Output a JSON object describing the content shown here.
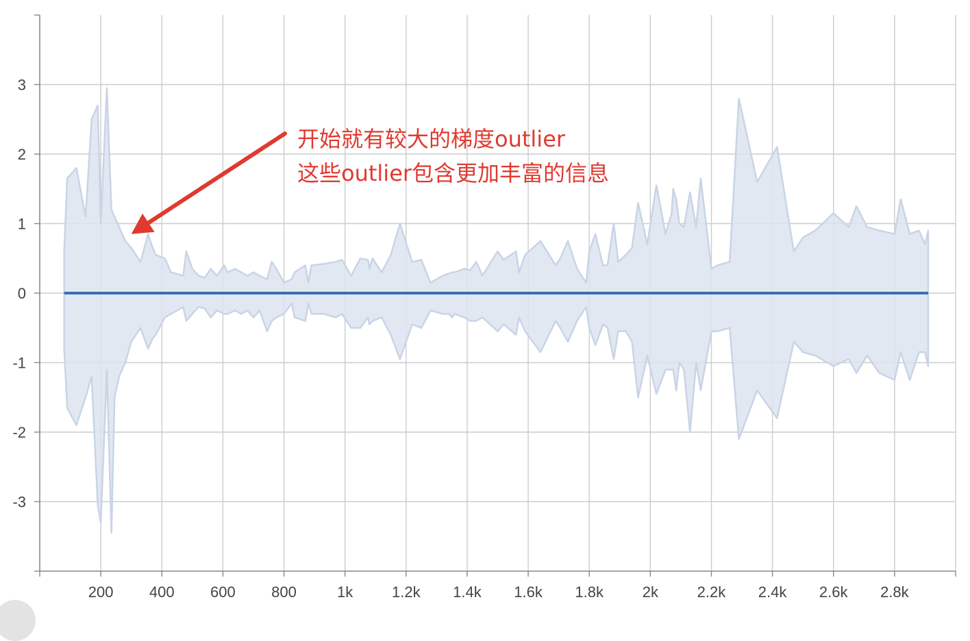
{
  "chart_data": {
    "type": "area",
    "title": "",
    "xlabel": "",
    "ylabel": "",
    "xlim": [
      0,
      3000
    ],
    "ylim": [
      -4,
      4
    ],
    "x_ticks": [
      {
        "value": 200,
        "label": "200"
      },
      {
        "value": 400,
        "label": "400"
      },
      {
        "value": 600,
        "label": "600"
      },
      {
        "value": 800,
        "label": "800"
      },
      {
        "value": 1000,
        "label": "1k"
      },
      {
        "value": 1200,
        "label": "1.2k"
      },
      {
        "value": 1400,
        "label": "1.4k"
      },
      {
        "value": 1600,
        "label": "1.6k"
      },
      {
        "value": 1800,
        "label": "1.8k"
      },
      {
        "value": 2000,
        "label": "2k"
      },
      {
        "value": 2200,
        "label": "2.2k"
      },
      {
        "value": 2400,
        "label": "2.4k"
      },
      {
        "value": 2600,
        "label": "2.6k"
      },
      {
        "value": 2800,
        "label": "2.8k"
      }
    ],
    "y_ticks": [
      {
        "value": 3,
        "label": "3"
      },
      {
        "value": 2,
        "label": "2"
      },
      {
        "value": 1,
        "label": "1"
      },
      {
        "value": 0,
        "label": "0"
      },
      {
        "value": -1,
        "label": "-1"
      },
      {
        "value": -2,
        "label": "-2"
      },
      {
        "value": -3,
        "label": "-3"
      }
    ],
    "grid": true,
    "colors": {
      "mean_line": "#3a6fb0",
      "band_fill": "#dde4ef",
      "band_stroke": "#c9d4e6",
      "grid": "#cccccc",
      "axis": "#888888",
      "annotation": "#e03a30"
    },
    "series": [
      {
        "kind": "line",
        "x": [
          80,
          2910
        ],
        "y": [
          0,
          0
        ]
      },
      {
        "kind": "band",
        "x": [
          80,
          90,
          120,
          150,
          170,
          190,
          200,
          220,
          235,
          245,
          260,
          280,
          300,
          330,
          355,
          370,
          380,
          410,
          430,
          470,
          480,
          500,
          520,
          540,
          560,
          580,
          605,
          615,
          640,
          660,
          680,
          700,
          720,
          745,
          760,
          775,
          800,
          825,
          835,
          870,
          880,
          890,
          930,
          970,
          990,
          1020,
          1050,
          1075,
          1080,
          1090,
          1120,
          1150,
          1180,
          1220,
          1250,
          1280,
          1320,
          1340,
          1350,
          1360,
          1390,
          1410,
          1430,
          1450,
          1500,
          1520,
          1560,
          1570,
          1590,
          1640,
          1690,
          1705,
          1730,
          1760,
          1790,
          1800,
          1820,
          1845,
          1860,
          1880,
          1895,
          1920,
          1940,
          1960,
          1990,
          2020,
          2050,
          2070,
          2075,
          2085,
          2095,
          2110,
          2130,
          2150,
          2165,
          2200,
          2220,
          2260,
          2290,
          2350,
          2415,
          2470,
          2500,
          2540,
          2600,
          2650,
          2675,
          2710,
          2750,
          2800,
          2820,
          2850,
          2880,
          2900,
          2910
        ],
        "upper": [
          0.6,
          1.65,
          1.8,
          1.1,
          2.5,
          2.7,
          1.0,
          2.95,
          1.2,
          1.1,
          0.95,
          0.75,
          0.65,
          0.45,
          0.85,
          0.65,
          0.55,
          0.5,
          0.3,
          0.25,
          0.6,
          0.35,
          0.25,
          0.22,
          0.35,
          0.25,
          0.4,
          0.3,
          0.35,
          0.3,
          0.25,
          0.3,
          0.25,
          0.2,
          0.45,
          0.35,
          0.15,
          0.2,
          0.3,
          0.4,
          0.15,
          0.4,
          0.42,
          0.45,
          0.48,
          0.25,
          0.5,
          0.48,
          0.35,
          0.5,
          0.3,
          0.55,
          1.0,
          0.45,
          0.48,
          0.15,
          0.25,
          0.28,
          0.3,
          0.3,
          0.35,
          0.33,
          0.45,
          0.25,
          0.6,
          0.48,
          0.6,
          0.3,
          0.55,
          0.75,
          0.4,
          0.5,
          0.75,
          0.35,
          0.15,
          0.6,
          0.85,
          0.4,
          0.4,
          1.0,
          0.45,
          0.55,
          0.65,
          1.3,
          0.7,
          1.55,
          0.85,
          1.15,
          1.5,
          1.35,
          1.0,
          0.95,
          1.45,
          0.95,
          1.65,
          0.35,
          0.4,
          0.45,
          2.8,
          1.6,
          2.1,
          0.6,
          0.8,
          0.9,
          1.15,
          0.95,
          1.25,
          0.95,
          0.9,
          0.85,
          1.35,
          0.85,
          0.9,
          0.7,
          0.9
        ],
        "lower": [
          -0.8,
          -1.65,
          -1.9,
          -1.5,
          -1.2,
          -3.05,
          -3.3,
          -1.1,
          -3.45,
          -1.5,
          -1.2,
          -1.0,
          -0.7,
          -0.5,
          -0.8,
          -0.65,
          -0.6,
          -0.35,
          -0.3,
          -0.2,
          -0.4,
          -0.3,
          -0.2,
          -0.22,
          -0.35,
          -0.25,
          -0.3,
          -0.3,
          -0.25,
          -0.3,
          -0.25,
          -0.35,
          -0.25,
          -0.55,
          -0.4,
          -0.35,
          -0.3,
          -0.15,
          -0.35,
          -0.4,
          -0.15,
          -0.3,
          -0.3,
          -0.35,
          -0.3,
          -0.5,
          -0.5,
          -0.35,
          -0.45,
          -0.4,
          -0.35,
          -0.6,
          -0.95,
          -0.45,
          -0.5,
          -0.25,
          -0.3,
          -0.3,
          -0.35,
          -0.3,
          -0.35,
          -0.4,
          -0.4,
          -0.35,
          -0.55,
          -0.45,
          -0.6,
          -0.35,
          -0.55,
          -0.85,
          -0.4,
          -0.5,
          -0.7,
          -0.4,
          -0.2,
          -0.5,
          -0.75,
          -0.45,
          -0.5,
          -0.95,
          -0.55,
          -0.55,
          -0.7,
          -1.5,
          -0.9,
          -1.45,
          -1.1,
          -1.1,
          -1.1,
          -1.4,
          -1.0,
          -1.1,
          -2.0,
          -1.0,
          -1.4,
          -0.55,
          -0.55,
          -0.5,
          -2.1,
          -1.4,
          -1.8,
          -0.7,
          -0.85,
          -0.9,
          -1.05,
          -0.95,
          -1.15,
          -0.9,
          -1.15,
          -1.25,
          -0.85,
          -1.25,
          -0.85,
          -0.85,
          -1.05
        ]
      }
    ],
    "annotation": {
      "lines": [
        "开始就有较大的梯度outlier",
        "这些outlier包含更加丰富的信息"
      ],
      "arrow_target": {
        "x": 300,
        "y": 0.85
      }
    }
  }
}
